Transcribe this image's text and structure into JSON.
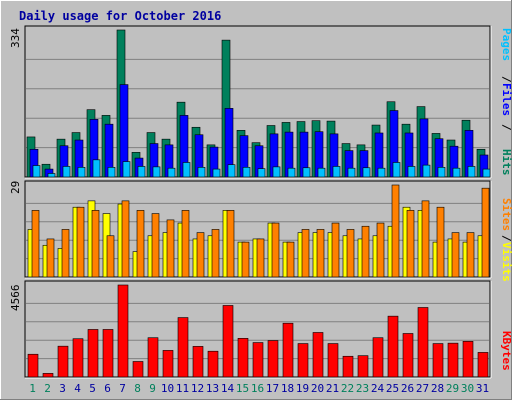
{
  "title": "Daily usage for October 2016",
  "colors": {
    "background": "#c0c0c0",
    "title": "#0000a0",
    "hits": "#00805c",
    "files": "#0000ff",
    "pages": "#00c0ff",
    "visits": "#ffff00",
    "sites": "#ff8000",
    "kbytes": "#ff0000",
    "weekend_label": "#00805c",
    "weekday_label": "#0000a0"
  },
  "chart_data": [
    {
      "type": "bar",
      "panel": "top",
      "ymax_label": "334",
      "ylim": [
        0,
        334
      ],
      "categories": [
        "1",
        "2",
        "3",
        "4",
        "5",
        "6",
        "7",
        "8",
        "9",
        "10",
        "11",
        "12",
        "13",
        "14",
        "15",
        "16",
        "17",
        "18",
        "19",
        "20",
        "21",
        "22",
        "23",
        "24",
        "25",
        "26",
        "27",
        "28",
        "29",
        "30",
        "31"
      ],
      "weekend": [
        "1",
        "2",
        "8",
        "9",
        "15",
        "16",
        "22",
        "23",
        "29",
        "30"
      ],
      "legend": [
        "Pages",
        "Files",
        "Hits"
      ],
      "series": [
        {
          "name": "Hits",
          "values": [
            91,
            29,
            86,
            101,
            153,
            140,
            334,
            56,
            101,
            86,
            170,
            113,
            73,
            311,
            106,
            78,
            117,
            124,
            126,
            128,
            127,
            76,
            73,
            118,
            171,
            120,
            160,
            99,
            84,
            129,
            63
          ]
        },
        {
          "name": "Files",
          "values": [
            63,
            18,
            71,
            84,
            131,
            120,
            210,
            43,
            76,
            73,
            140,
            96,
            68,
            156,
            94,
            71,
            98,
            102,
            102,
            103,
            98,
            60,
            60,
            100,
            151,
            100,
            132,
            87,
            70,
            106,
            50
          ]
        },
        {
          "name": "Pages",
          "values": [
            26,
            8,
            24,
            22,
            39,
            22,
            35,
            24,
            23,
            20,
            33,
            22,
            18,
            28,
            22,
            19,
            23,
            20,
            21,
            20,
            24,
            20,
            21,
            20,
            33,
            24,
            27,
            22,
            20,
            24,
            18
          ]
        }
      ]
    },
    {
      "type": "bar",
      "panel": "middle",
      "ymax_label": "29",
      "ylim": [
        0,
        29
      ],
      "categories": [
        "1",
        "2",
        "3",
        "4",
        "5",
        "6",
        "7",
        "8",
        "9",
        "10",
        "11",
        "12",
        "13",
        "14",
        "15",
        "16",
        "17",
        "18",
        "19",
        "20",
        "21",
        "22",
        "23",
        "24",
        "25",
        "26",
        "27",
        "28",
        "29",
        "30",
        "31"
      ],
      "legend": [
        "Sites",
        "Visits"
      ],
      "series": [
        {
          "name": "Visits",
          "values": [
            15,
            10,
            9,
            22,
            24,
            20,
            23,
            8,
            13,
            14,
            17,
            12,
            13,
            21,
            11,
            12,
            17,
            11,
            14,
            14,
            14,
            13,
            12,
            13,
            16,
            22,
            21,
            11,
            12,
            11,
            13
          ]
        },
        {
          "name": "Sites",
          "values": [
            21,
            12,
            15,
            22,
            21,
            13,
            24,
            21,
            20,
            18,
            21,
            14,
            15,
            21,
            11,
            12,
            17,
            11,
            15,
            15,
            17,
            15,
            16,
            17,
            29,
            21,
            24,
            22,
            14,
            14,
            28
          ]
        }
      ]
    },
    {
      "type": "bar",
      "panel": "bottom",
      "ymax_label": "4566",
      "ylim": [
        0,
        4566
      ],
      "categories": [
        "1",
        "2",
        "3",
        "4",
        "5",
        "6",
        "7",
        "8",
        "9",
        "10",
        "11",
        "12",
        "13",
        "14",
        "15",
        "16",
        "17",
        "18",
        "19",
        "20",
        "21",
        "22",
        "23",
        "24",
        "25",
        "26",
        "27",
        "28",
        "29",
        "30",
        "31"
      ],
      "legend": [
        "KBytes"
      ],
      "series": [
        {
          "name": "KBytes",
          "values": [
            1130,
            180,
            1530,
            1900,
            2360,
            2360,
            4566,
            770,
            1950,
            1320,
            2950,
            1520,
            1280,
            3550,
            1920,
            1710,
            1810,
            2670,
            1660,
            2210,
            1660,
            1030,
            1060,
            1950,
            3020,
            2160,
            3450,
            1660,
            1680,
            1770,
            1220
          ]
        }
      ]
    }
  ]
}
